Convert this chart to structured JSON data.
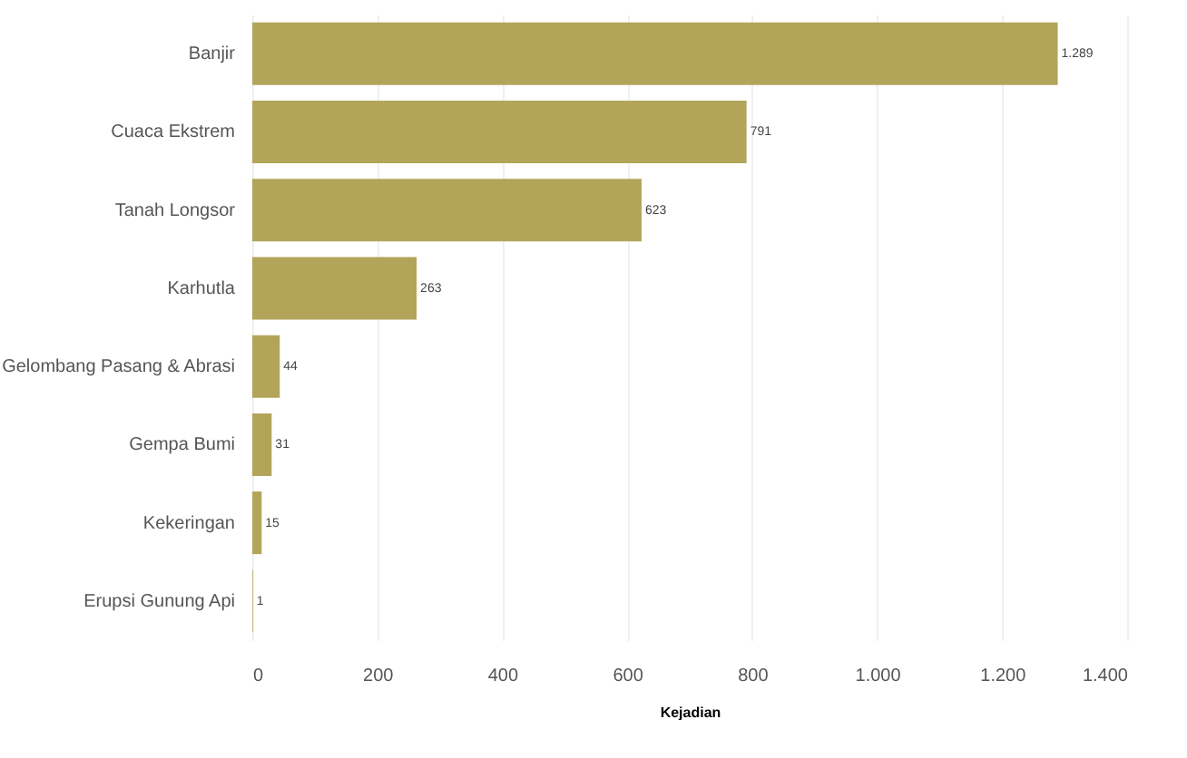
{
  "chart_data": {
    "type": "bar",
    "orientation": "horizontal",
    "xlabel": "Kejadian",
    "categories": [
      "Banjir",
      "Cuaca Ekstrem",
      "Tanah Longsor",
      "Karhutla",
      "Gelombang Pasang & Abrasi",
      "Gempa Bumi",
      "Kekeringan",
      "Erupsi Gunung Api"
    ],
    "values": [
      1289,
      791,
      623,
      263,
      44,
      31,
      15,
      1
    ],
    "value_labels": [
      "1.289",
      "791",
      "623",
      "263",
      "44",
      "31",
      "15",
      "1"
    ],
    "color": "#b2a55a",
    "xlim": [
      0,
      1400
    ],
    "xticks": [
      0,
      200,
      400,
      600,
      800,
      {
        "value": 1000,
        "label": "1.000"
      },
      {
        "value": 1200,
        "label": "1.200"
      },
      {
        "value": 1400,
        "label": "1.400"
      }
    ],
    "grid": "x"
  }
}
